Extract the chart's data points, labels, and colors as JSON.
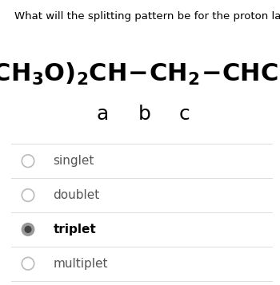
{
  "question": "What will the splitting pattern be for the proton labeled “c”?",
  "labels": [
    "a",
    "b",
    "c"
  ],
  "options": [
    "singlet",
    "doublet",
    "triplet",
    "multiplet"
  ],
  "selected_index": 2,
  "bg_color": "#ffffff",
  "text_color": "#000000",
  "option_color": "#555555",
  "selected_color": "#999999",
  "unselected_color": "#bbbbbb",
  "divider_color": "#dddddd",
  "question_fontsize": 9.5,
  "formula_fontsize": 22,
  "label_fontsize": 18,
  "option_fontsize": 11
}
